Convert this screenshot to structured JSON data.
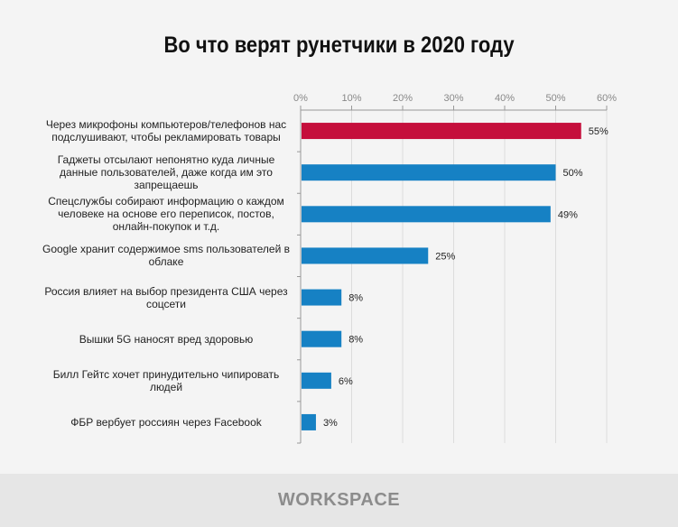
{
  "title": "Во что верят рунетчики в 2020 году",
  "footer": {
    "logo": "WORKSPACE"
  },
  "chart_data": {
    "type": "bar",
    "orientation": "horizontal",
    "categories": [
      "Через микрофоны компьютеров/телефонов нас подслушивают, чтобы рекламировать товары",
      "Гаджеты отсылают непонятно куда личные данные пользователей, даже когда им это запрещаешь",
      "Спецслужбы собирают информацию  о каждом человеке на основе его переписок, постов, онлайн-покупок и т.д.",
      "Google хранит содержимое sms пользователей в облаке",
      "Россия влияет на выбор президента США через соцсети",
      "Вышки 5G наносят вред здоровью",
      "Билл Гейтс хочет принудительно чипировать людей",
      "ФБР вербует россиян через Facebook"
    ],
    "values": [
      55,
      50,
      49,
      25,
      8,
      8,
      6,
      3
    ],
    "data_labels": [
      "55%",
      "50%",
      "49%",
      "25%",
      "8%",
      "8%",
      "6%",
      "3%"
    ],
    "xlim": [
      0,
      60
    ],
    "ticks": [
      0,
      10,
      20,
      30,
      40,
      50,
      60
    ],
    "tick_labels": [
      "0%",
      "10%",
      "20%",
      "30%",
      "40%",
      "50%",
      "60%"
    ],
    "axis_position": "top",
    "grid": true,
    "colors": {
      "highlight": "#c50f3c",
      "default": "#1681c4"
    }
  }
}
